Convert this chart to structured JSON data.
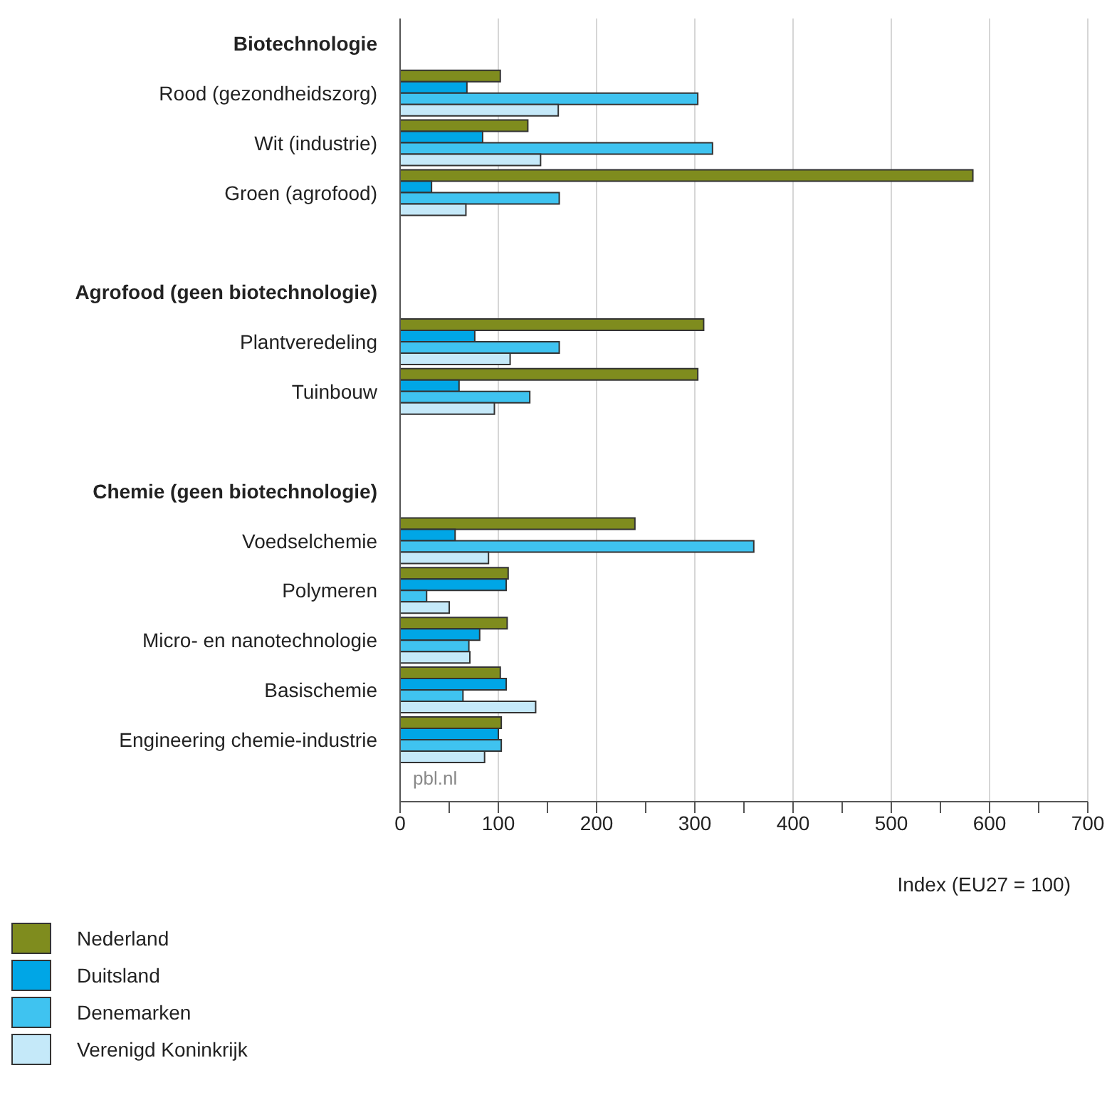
{
  "chart_data": {
    "type": "bar",
    "orientation": "horizontal",
    "xlabel": "Index (EU27 = 100)",
    "categories": [
      "Biotechnologie",
      "Rood (gezondheidszorg)",
      "Wit (industrie)",
      "Groen (agrofood)",
      null,
      "Agrofood (geen biotechnologie)",
      "Plantveredeling",
      "Tuinbouw",
      null,
      "Chemie (geen biotechnologie)",
      "Voedselchemie",
      "Polymeren",
      "Micro- en nanotechnologie",
      "Basischemie",
      "Engineering chemie-industrie"
    ],
    "series": [
      {
        "name": "Nederland",
        "color": "#7f8c1e",
        "values": [
          null,
          102,
          130,
          583,
          null,
          null,
          309,
          303,
          null,
          null,
          239,
          110,
          109,
          102,
          103
        ]
      },
      {
        "name": "Duitsland",
        "color": "#00a6e6",
        "values": [
          null,
          68,
          84,
          32,
          null,
          null,
          76,
          60,
          null,
          null,
          56,
          108,
          81,
          108,
          100
        ]
      },
      {
        "name": "Denemarken",
        "color": "#3fc3f0",
        "values": [
          null,
          303,
          318,
          162,
          null,
          null,
          162,
          132,
          null,
          null,
          360,
          27,
          70,
          64,
          103
        ]
      },
      {
        "name": "Verenigd Koninkrijk",
        "color": "#c5e9f9",
        "values": [
          null,
          161,
          143,
          67,
          null,
          null,
          112,
          96,
          null,
          null,
          90,
          50,
          71,
          138,
          86
        ]
      }
    ],
    "xlim": [
      0,
      700
    ],
    "xticks": [
      0,
      {
        "value": 50,
        "label": null
      },
      100,
      {
        "value": 150,
        "label": null
      },
      200,
      {
        "value": 250,
        "label": null
      },
      300,
      {
        "value": 350,
        "label": null
      },
      400,
      {
        "value": 450,
        "label": null
      },
      500,
      {
        "value": 550,
        "label": null
      },
      600,
      {
        "value": 650,
        "label": null
      },
      700
    ],
    "grid": "x",
    "legend": "bottom",
    "annotations": [
      "pbl.nl"
    ]
  }
}
